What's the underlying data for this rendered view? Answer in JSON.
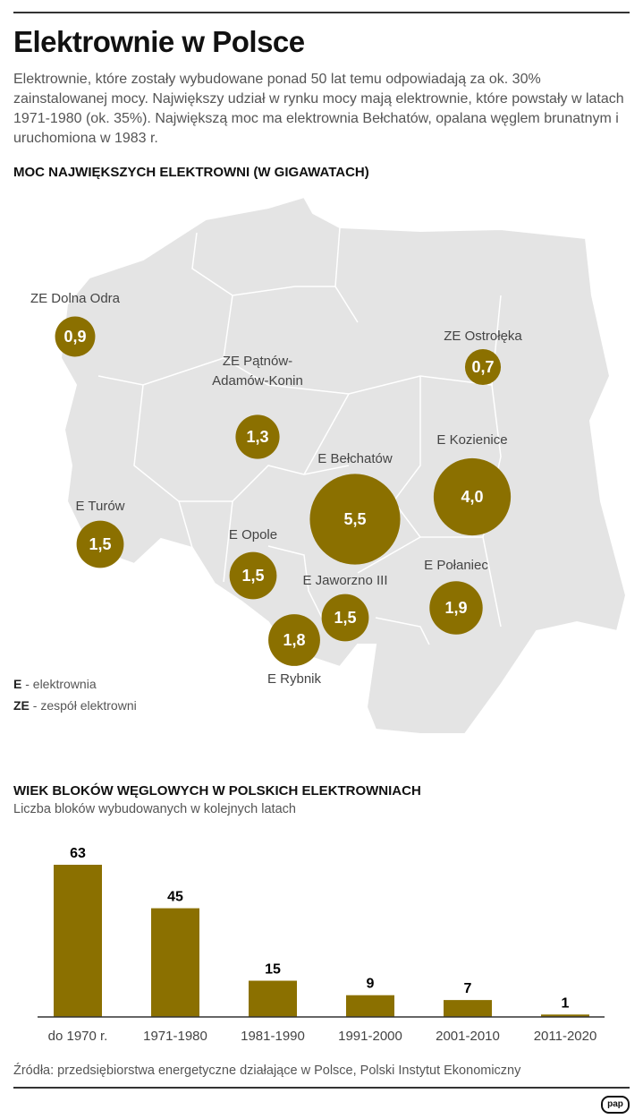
{
  "title": "Elektrownie w Polsce",
  "lead": "Elektrownie, które zostały wybudowane ponad 50 lat temu odpowiadają za ok. 30% zainstalowanej mocy. Największy udział w rynku mocy mają elektrownie, które powstały w latach 1971-1980 (ok. 35%). Największą moc ma elektrownia Bełchatów, opalana węglem brunatnym i uruchomiona w 1983 r.",
  "map": {
    "title": "MOC NAJWIĘKSZYCH ELEKTROWNI (W GIGAWATACH)",
    "color": "#8b7000",
    "plants": [
      {
        "name": "ZE Dolna Odra",
        "value": "0,9",
        "gw": 0.9
      },
      {
        "name": "ZE Ostrołęka",
        "value": "0,7",
        "gw": 0.7
      },
      {
        "name": "ZE Pątnów-Adamów-Konin",
        "line1": "ZE Pątnów-",
        "line2": "Adamów-Konin",
        "value": "1,3",
        "gw": 1.3
      },
      {
        "name": "E Bełchatów",
        "value": "5,5",
        "gw": 5.5
      },
      {
        "name": "E Kozienice",
        "value": "4,0",
        "gw": 4.0
      },
      {
        "name": "E Turów",
        "value": "1,5",
        "gw": 1.5
      },
      {
        "name": "E Opole",
        "value": "1,5",
        "gw": 1.5
      },
      {
        "name": "E Jaworzno III",
        "value": "1,5",
        "gw": 1.5
      },
      {
        "name": "E Połaniec",
        "value": "1,9",
        "gw": 1.9
      },
      {
        "name": "E Rybnik",
        "value": "1,8",
        "gw": 1.8
      }
    ],
    "legend": [
      {
        "abbr": "E",
        "text": " - elektrownia"
      },
      {
        "abbr": "ZE",
        "text": " - zespół elektrowni"
      }
    ]
  },
  "chart_data": {
    "type": "bar",
    "title": "WIEK BLOKÓW WĘGLOWYCH W POLSKICH ELEKTROWNIACH",
    "subtitle": "Liczba bloków wybudowanych w kolejnych latach",
    "categories": [
      "do 1970 r.",
      "1971-1980",
      "1981-1990",
      "1991-2000",
      "2001-2010",
      "2011-2020"
    ],
    "values": [
      63,
      45,
      15,
      9,
      7,
      1
    ],
    "labels": [
      "63",
      "45",
      "15",
      "9",
      "7",
      "1"
    ],
    "ylim": [
      0,
      63
    ],
    "color": "#8b7000"
  },
  "source": "Źródła: przedsiębiorstwa energetyczne działające w Polsce, Polski Instytut Ekonomiczny",
  "logo": "pap"
}
